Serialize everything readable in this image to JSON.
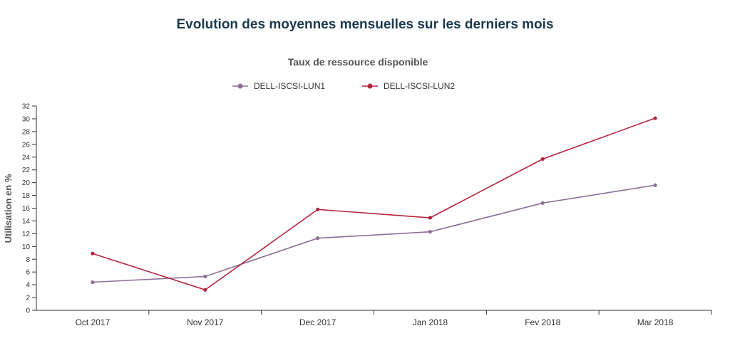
{
  "page": {
    "title": "Evolution des moyennes mensuelles sur les derniers mois"
  },
  "chart_data": {
    "type": "line",
    "title": "Taux de ressource disponible",
    "xlabel": "",
    "ylabel": "Utilisation en %",
    "categories": [
      "Oct 2017",
      "Nov 2017",
      "Dec 2017",
      "Jan 2018",
      "Fev 2018",
      "Mar 2018"
    ],
    "ylim": [
      0,
      32
    ],
    "yticks": [
      0,
      2,
      4,
      6,
      8,
      10,
      12,
      14,
      16,
      18,
      20,
      22,
      24,
      26,
      28,
      30,
      32
    ],
    "grid": false,
    "legend_position": "top-center",
    "series": [
      {
        "name": "DELL-ISCSI-LUN1",
        "color": "#8c6f96",
        "values": [
          4.4,
          5.3,
          11.3,
          12.3,
          16.8,
          19.6
        ]
      },
      {
        "name": "DELL-ISCSI-LUN2",
        "color": "#b5243f",
        "values": [
          8.9,
          3.2,
          15.8,
          14.5,
          23.7,
          30.1
        ]
      }
    ]
  }
}
